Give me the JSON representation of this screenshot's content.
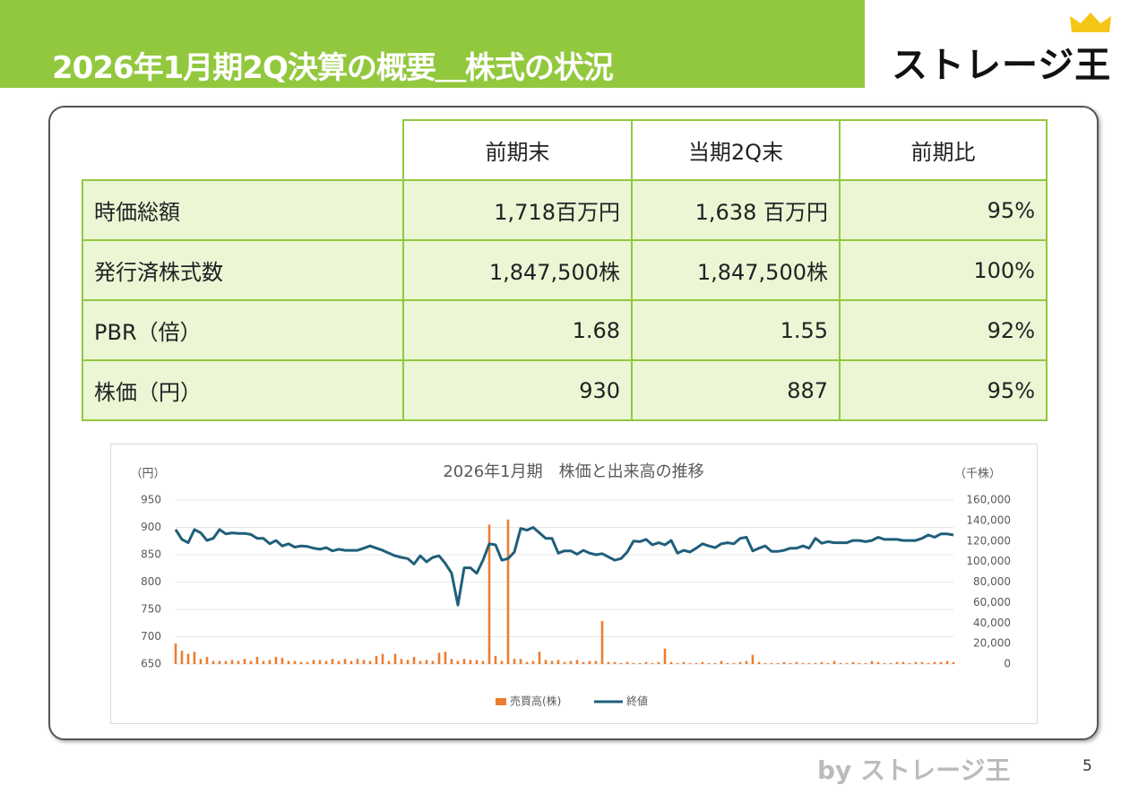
{
  "header": {
    "title": "2026年1月期2Q決算の概要＿株式の状況",
    "logo": "ストレージ王"
  },
  "table": {
    "columns": [
      "前期末",
      "当期2Q末",
      "前期比"
    ],
    "rows": [
      [
        "時価総額",
        "1,718百万円",
        "1,638 百万円",
        "95%"
      ],
      [
        "発行済株式数",
        "1,847,500株",
        "1,847,500株",
        "100%"
      ],
      [
        "PBR（倍）",
        "1.68",
        "1.55",
        "92%"
      ],
      [
        "株価（円）",
        "930",
        "887",
        "95%"
      ]
    ]
  },
  "chart_data": {
    "type": "bar-line",
    "title": "2026年1月期　株価と出来高の推移",
    "y_label": "（円）",
    "y2_label": "（千株）",
    "ylim": [
      650,
      950
    ],
    "yticks": [
      650,
      700,
      750,
      800,
      850,
      900,
      950
    ],
    "y2lim": [
      0,
      160000
    ],
    "y2ticks": [
      0,
      {
        "value": 20000,
        "label": "20,000"
      },
      {
        "value": 40000,
        "label": "40,000"
      },
      {
        "value": 60000,
        "label": "60,000"
      },
      {
        "value": 80000,
        "label": "80,000"
      },
      {
        "value": 100000,
        "label": "100,000"
      },
      {
        "value": 120000,
        "label": "120,000"
      },
      {
        "value": 140000,
        "label": "140,000"
      },
      {
        "value": 160000,
        "label": "160,000"
      }
    ],
    "grid": true,
    "legend": "bottom",
    "series": [
      {
        "name": "売買高(株)",
        "type": "bar",
        "axis": "y2",
        "color": "#ed7d31",
        "values": [
          20000,
          13000,
          10000,
          12000,
          5000,
          7000,
          3000,
          3000,
          3000,
          4000,
          3000,
          5000,
          3000,
          7000,
          3000,
          4000,
          7000,
          6000,
          3000,
          3000,
          2000,
          2000,
          4000,
          4000,
          3000,
          5000,
          3000,
          5000,
          3000,
          5000,
          4000,
          3000,
          8000,
          10000,
          3000,
          10000,
          5000,
          4000,
          7000,
          3000,
          4000,
          3000,
          11000,
          12000,
          5000,
          3000,
          5000,
          4000,
          4000,
          3000,
          136000,
          8000,
          3000,
          141000,
          5000,
          5000,
          2000,
          3000,
          12000,
          4000,
          3000,
          4000,
          2000,
          3000,
          4000,
          2000,
          3000,
          3000,
          42000,
          2000,
          2000,
          1000,
          2000,
          1000,
          1000,
          2000,
          1000,
          2000,
          15000,
          2000,
          1000,
          2000,
          1000,
          1000,
          2000,
          1000,
          1000,
          3000,
          1000,
          1000,
          2000,
          3000,
          9000,
          2000,
          1000,
          1000,
          1000,
          2000,
          1000,
          2000,
          1000,
          1000,
          1000,
          2000,
          1000,
          3000,
          1000,
          1000,
          2000,
          1000,
          1000,
          3000,
          2000,
          1000,
          1000,
          2000,
          2000,
          1000,
          2000,
          2000,
          1000,
          2000,
          2000,
          3000,
          2000
        ]
      },
      {
        "name": "終値",
        "type": "line",
        "axis": "y",
        "color": "#1f5f7a",
        "values": [
          896,
          878,
          872,
          896,
          890,
          876,
          880,
          896,
          888,
          890,
          889,
          889,
          887,
          880,
          880,
          870,
          876,
          866,
          870,
          864,
          866,
          865,
          862,
          860,
          863,
          857,
          860,
          858,
          858,
          858,
          862,
          866,
          862,
          858,
          853,
          848,
          845,
          843,
          833,
          848,
          837,
          845,
          848,
          834,
          816,
          758,
          826,
          826,
          816,
          840,
          870,
          868,
          840,
          843,
          855,
          898,
          895,
          900,
          890,
          880,
          880,
          853,
          857,
          857,
          851,
          858,
          853,
          850,
          852,
          846,
          840,
          843,
          855,
          875,
          874,
          878,
          868,
          872,
          868,
          876,
          853,
          858,
          855,
          862,
          870,
          866,
          863,
          870,
          872,
          870,
          880,
          882,
          857,
          862,
          866,
          856,
          856,
          858,
          862,
          862,
          866,
          862,
          880,
          871,
          874,
          872,
          872,
          872,
          876,
          876,
          874,
          876,
          882,
          878,
          878,
          878,
          876,
          876,
          876,
          880,
          886,
          882,
          888,
          888,
          886
        ]
      }
    ]
  },
  "footer": {
    "credit": "by ストレージ王",
    "page": "5"
  }
}
